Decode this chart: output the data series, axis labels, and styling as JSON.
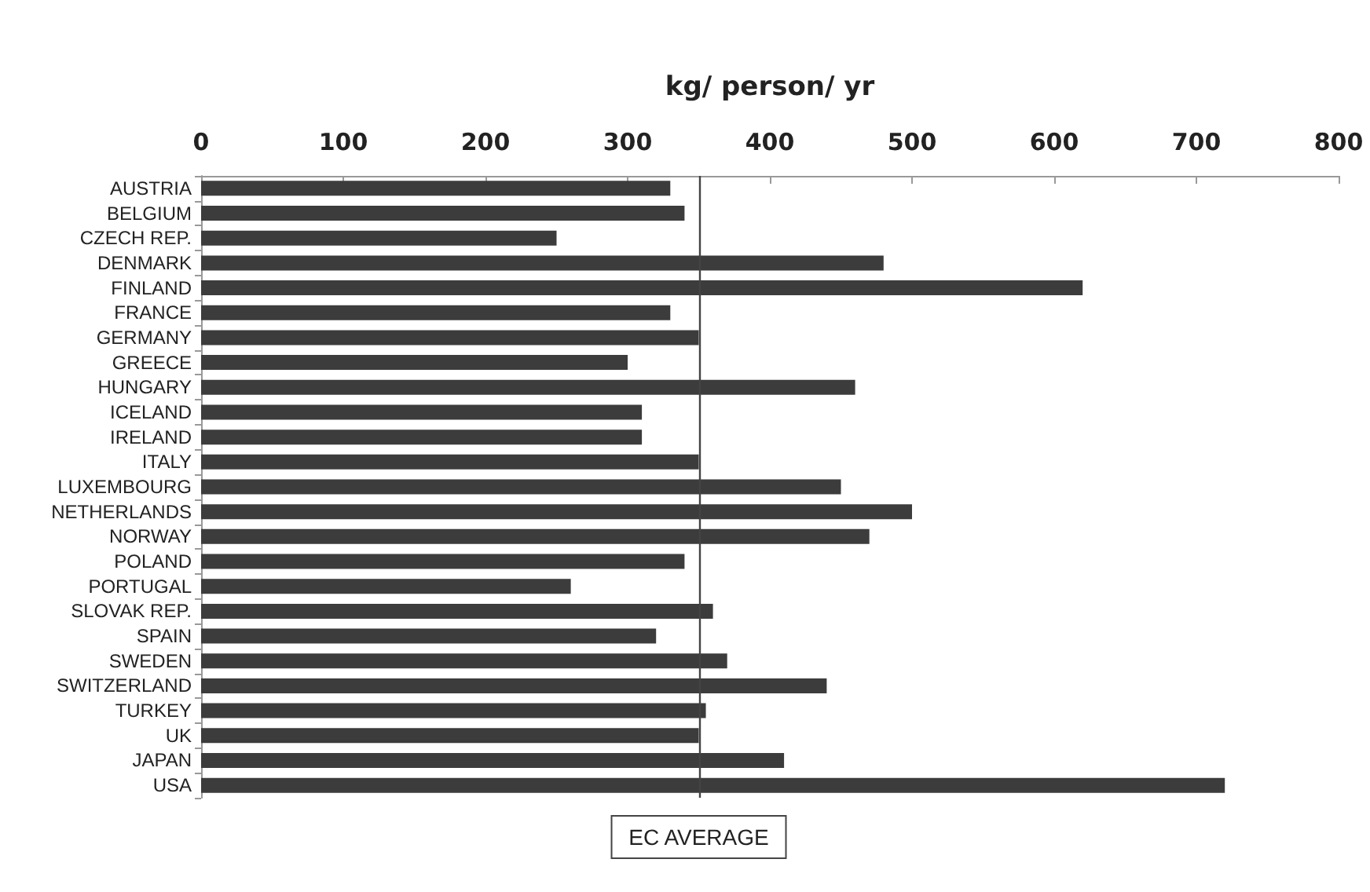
{
  "chart_data": {
    "type": "bar",
    "orientation": "horizontal",
    "xlabel": "kg/ person/ yr",
    "categories": [
      "AUSTRIA",
      "BELGIUM",
      "CZECH REP.",
      "DENMARK",
      "FINLAND",
      "FRANCE",
      "GERMANY",
      "GREECE",
      "HUNGARY",
      "ICELAND",
      "IRELAND",
      "ITALY",
      "LUXEMBOURG",
      "NETHERLANDS",
      "NORWAY",
      "POLAND",
      "PORTUGAL",
      "SLOVAK REP.",
      "SPAIN",
      "SWEDEN",
      "SWITZERLAND",
      "TURKEY",
      "UK",
      "JAPAN",
      "USA"
    ],
    "values": [
      330,
      340,
      250,
      480,
      620,
      330,
      350,
      300,
      460,
      310,
      310,
      350,
      450,
      500,
      470,
      340,
      260,
      360,
      320,
      370,
      440,
      355,
      350,
      410,
      720
    ],
    "color": "#3c3c3c",
    "xlim": [
      0,
      800
    ],
    "xticks": [
      0,
      100,
      200,
      300,
      400,
      500,
      600,
      700,
      800
    ],
    "grid": false,
    "ref_lines": [
      {
        "axis": "x",
        "value": 350,
        "label": "EC AVERAGE",
        "color": "#444444"
      }
    ]
  }
}
